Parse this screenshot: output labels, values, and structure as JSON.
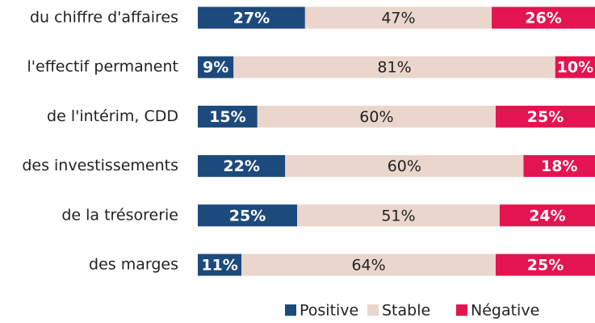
{
  "chart_data": {
    "type": "stacked_bar_horizontal",
    "categories": [
      "du chiffre d'affaires",
      "l'effectif permanent",
      "de l'intérim, CDD",
      "des investissements",
      "de la trésorerie",
      "des marges"
    ],
    "series": [
      {
        "name": "Positive",
        "color": "#1d4a7c",
        "values": [
          27,
          9,
          15,
          22,
          25,
          11
        ],
        "value_labels": [
          "27%",
          "9%",
          "15%",
          "22%",
          "25%",
          "11%"
        ]
      },
      {
        "name": "Stable",
        "color": "#ead6cc",
        "values": [
          47,
          81,
          60,
          60,
          51,
          64
        ],
        "value_labels": [
          "47%",
          "81%",
          "60%",
          "60%",
          "51%",
          "64%"
        ]
      },
      {
        "name": "Négative",
        "color": "#e3144f",
        "values": [
          26,
          10,
          25,
          18,
          24,
          25
        ],
        "value_labels": [
          "26%",
          "10%",
          "25%",
          "18%",
          "24%",
          "25%"
        ]
      }
    ],
    "xlim": [
      0,
      100
    ],
    "legend": "bottom"
  }
}
